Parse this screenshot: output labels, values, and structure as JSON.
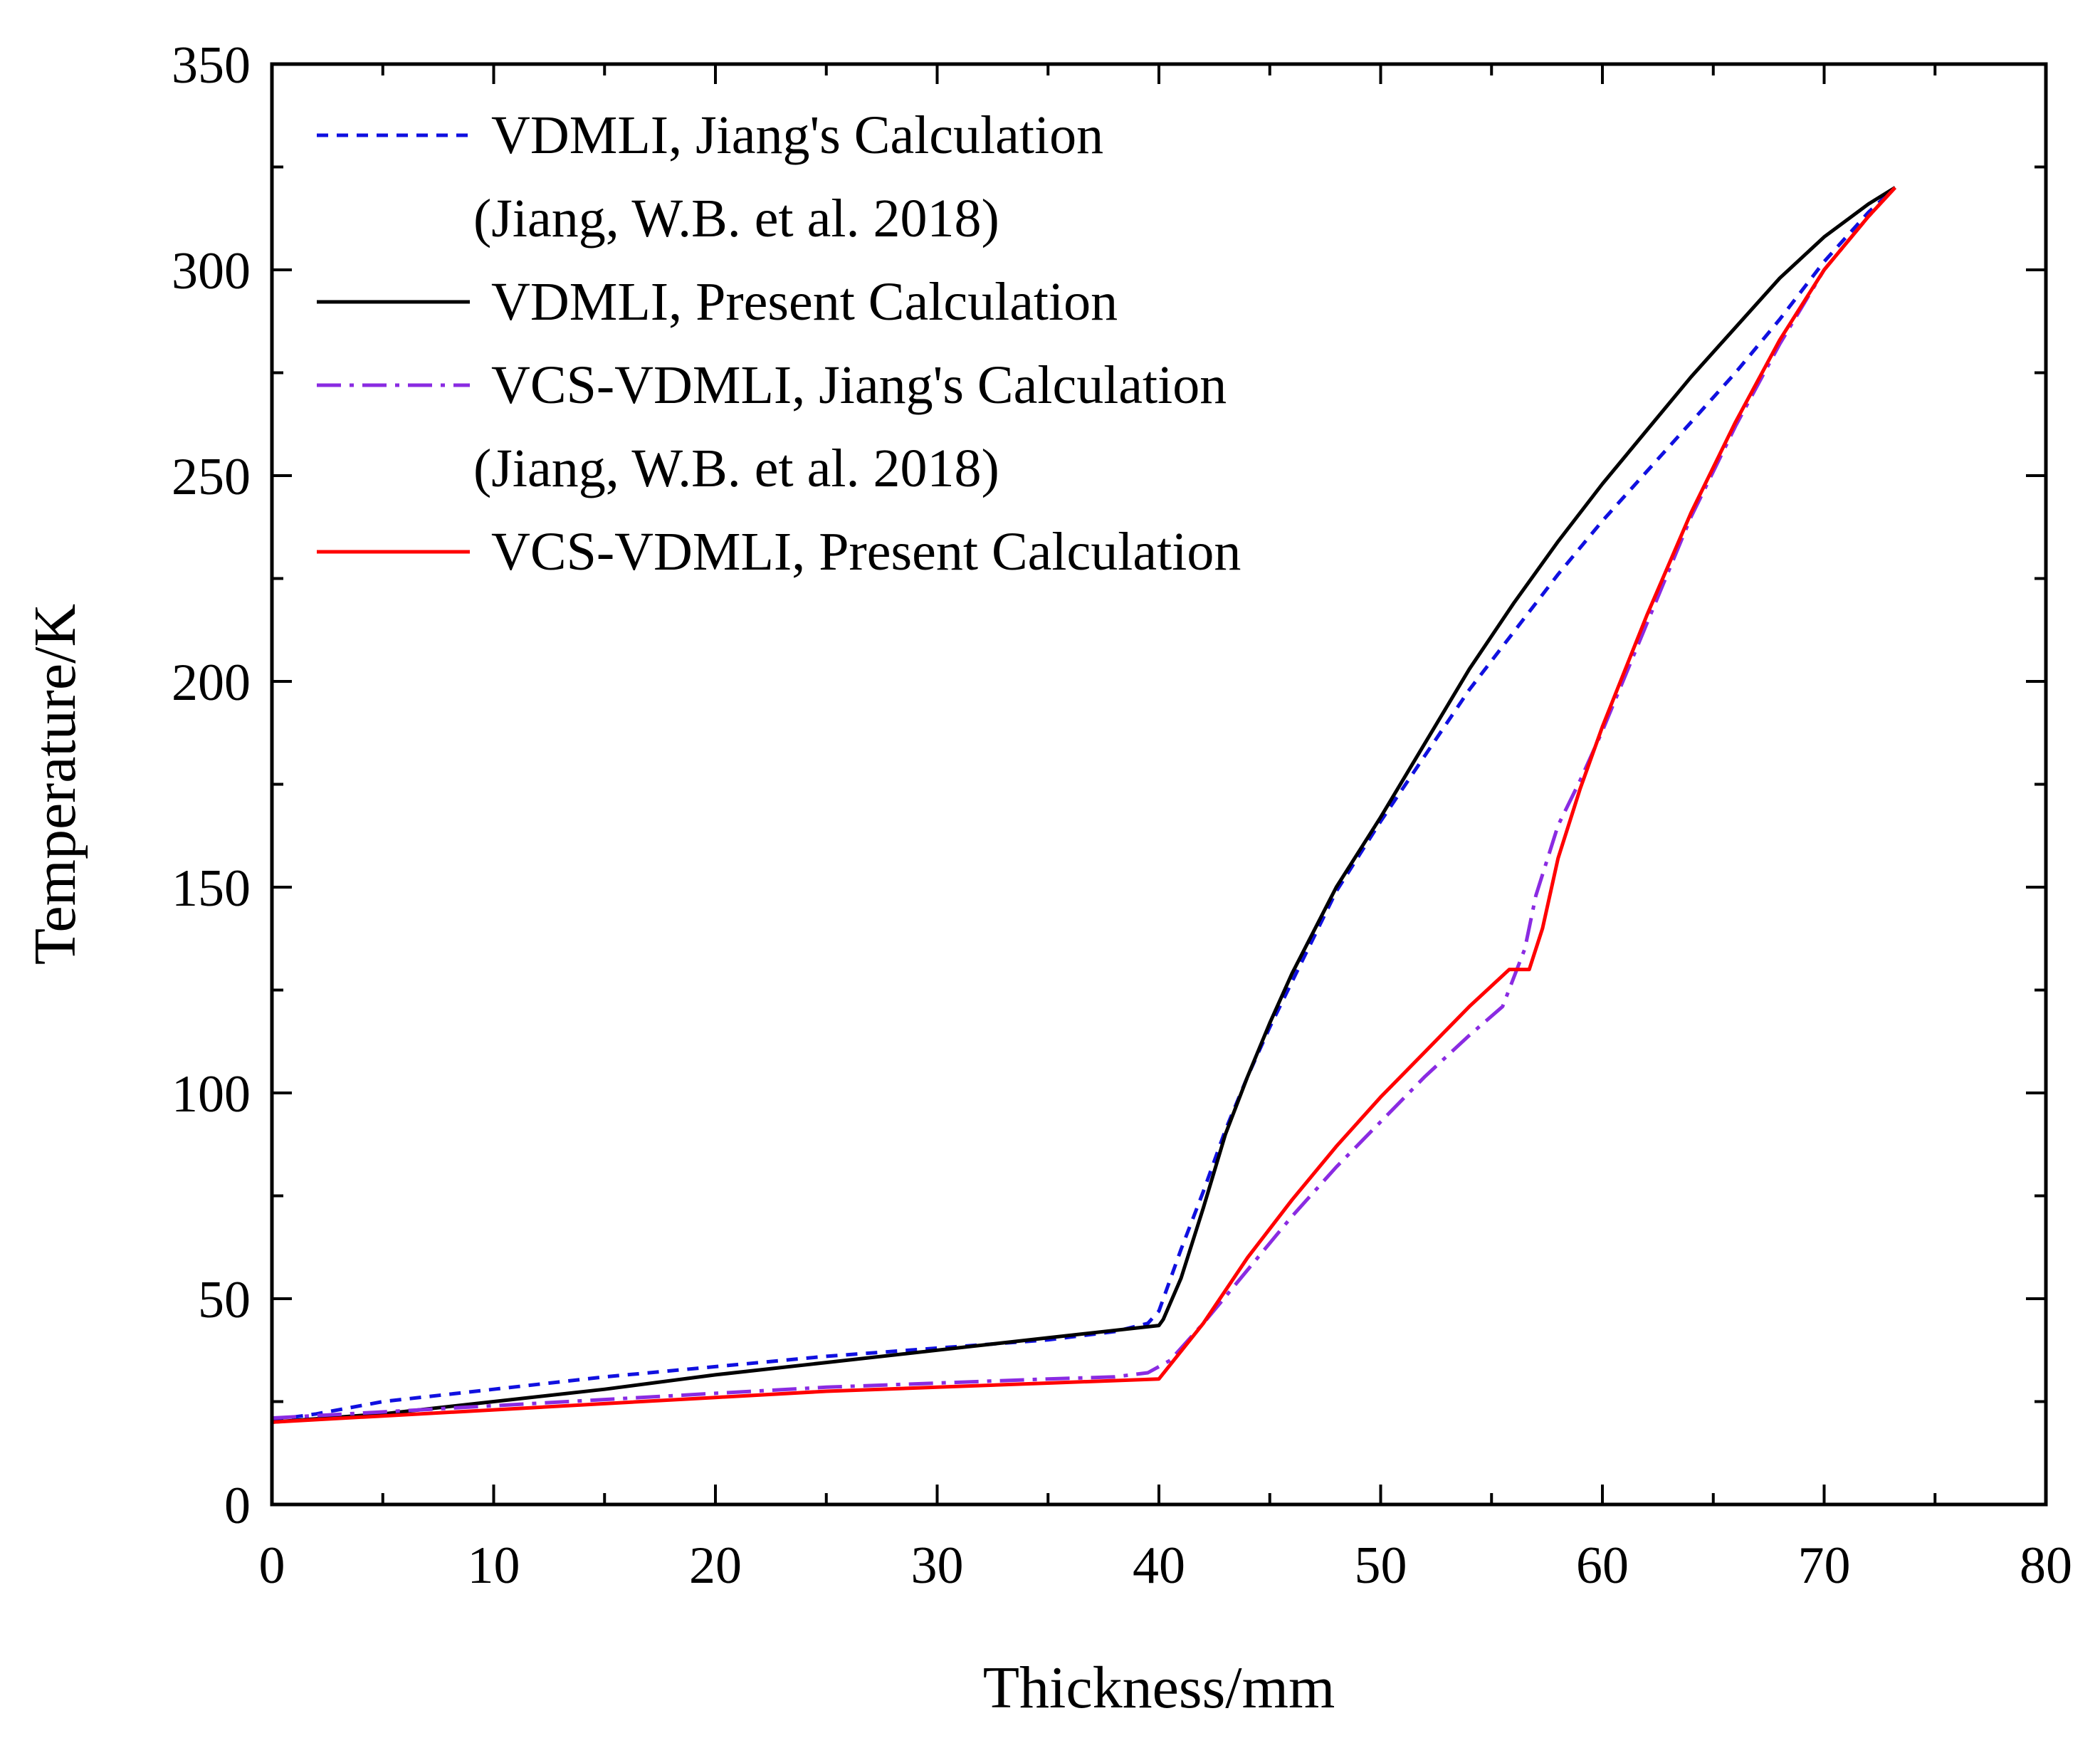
{
  "chart_data": {
    "type": "line",
    "title": "",
    "xlabel": "Thickness/mm",
    "ylabel": "Temperature/K",
    "xlim": [
      0,
      80
    ],
    "ylim": [
      0,
      350
    ],
    "xticks": [
      0,
      10,
      20,
      30,
      40,
      50,
      60,
      70,
      80
    ],
    "yticks": [
      0,
      50,
      100,
      150,
      200,
      250,
      300,
      350
    ],
    "grid": false,
    "legend_position": "top-left",
    "series": [
      {
        "name": "VDMLI, Jiang's Calculation",
        "name_line2": "(Jiang, W.B. et al. 2018)",
        "color": "#1010e0",
        "style": "dashed",
        "x": [
          0,
          2,
          5,
          10,
          15,
          20,
          25,
          30,
          35,
          38,
          39.5,
          40,
          41,
          42,
          43,
          44,
          45,
          46,
          48,
          50,
          52,
          54,
          56,
          58,
          60,
          62,
          64,
          66,
          68,
          70,
          72,
          73.2
        ],
        "y": [
          20.5,
          22,
          25,
          28,
          31,
          33.5,
          36,
          38,
          40,
          42,
          44,
          47,
          62,
          76,
          91,
          104,
          116,
          127,
          149,
          166,
          182,
          198,
          212,
          226,
          239,
          251,
          263,
          275,
          288,
          302,
          314,
          320
        ]
      },
      {
        "name": "VDMLI, Present Calculation",
        "color": "#000000",
        "style": "solid",
        "x": [
          0,
          5,
          10,
          15,
          20,
          25,
          30,
          35,
          40,
          40.2,
          41,
          42,
          43,
          44,
          45,
          46,
          48,
          50,
          52,
          54,
          56,
          58,
          60,
          62,
          64,
          66,
          68,
          70,
          72,
          73.2
        ],
        "y": [
          20,
          22,
          25,
          28,
          31.5,
          34.5,
          37.5,
          40.5,
          43.5,
          45,
          55,
          72,
          90,
          104,
          117,
          129,
          150,
          167,
          185,
          203,
          219,
          234,
          248,
          261,
          274,
          286,
          298,
          308,
          316,
          320
        ]
      },
      {
        "name": "VCS-VDMLI, Jiang's Calculation",
        "name_line2": "(Jiang, W.B. et al. 2018)",
        "color": "#8a2be2",
        "style": "dashdot",
        "x": [
          0,
          5,
          10,
          15,
          20,
          25,
          30,
          35,
          38,
          39.5,
          40.5,
          42,
          44,
          46,
          48,
          50,
          52,
          54,
          55.5,
          56.5,
          57,
          58,
          59,
          60,
          62,
          64,
          66,
          68,
          70,
          72,
          73.2
        ],
        "y": [
          21,
          22.5,
          24,
          25.5,
          27,
          28.5,
          29.5,
          30.5,
          31,
          32,
          35,
          44,
          57,
          70,
          82,
          93,
          104,
          114,
          121,
          135,
          148,
          165,
          176,
          188,
          214,
          240,
          262,
          282,
          300,
          313,
          320
        ]
      },
      {
        "name": "VCS-VDMLI, Present Calculation",
        "color": "#ff0000",
        "style": "solid",
        "x": [
          0,
          5,
          10,
          15,
          20,
          25,
          30,
          35,
          40,
          42,
          44,
          46,
          48,
          50,
          52,
          54,
          55.8,
          56.7,
          57.3,
          58,
          59,
          60,
          62,
          64,
          66,
          68,
          70,
          72,
          73.2
        ],
        "y": [
          20,
          21.5,
          23,
          24.5,
          26,
          27.5,
          28.5,
          29.5,
          30.5,
          44,
          60,
          74,
          87,
          99,
          110,
          121,
          130,
          130,
          140,
          157,
          174,
          189,
          216,
          241,
          263,
          283,
          300,
          313,
          320
        ]
      }
    ]
  }
}
